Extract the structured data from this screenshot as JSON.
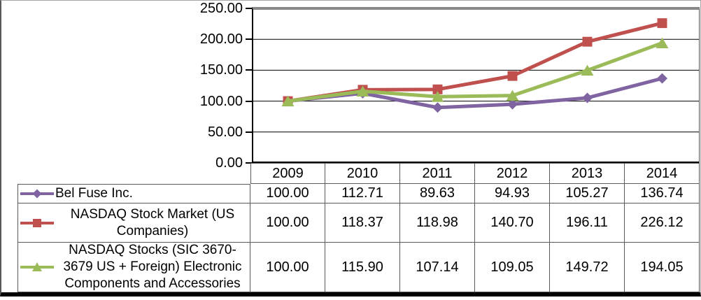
{
  "chart_data": {
    "type": "line",
    "title": "",
    "categories": [
      "2009",
      "2010",
      "2011",
      "2012",
      "2013",
      "2014"
    ],
    "series": [
      {
        "name": "Bel Fuse Inc.",
        "name_lines": [
          "Bel Fuse Inc."
        ],
        "color": "#8064A2",
        "marker": "diamond",
        "values": [
          100.0,
          112.71,
          89.63,
          94.93,
          105.27,
          136.74
        ],
        "values_display": [
          "100.00",
          "112.71",
          "89.63",
          "94.93",
          "105.27",
          "136.74"
        ]
      },
      {
        "name": "NASDAQ Stock Market (US Companies)",
        "name_lines": [
          "NASDAQ Stock Market (US",
          "Companies)"
        ],
        "color": "#C0504D",
        "marker": "square",
        "values": [
          100.0,
          118.37,
          118.98,
          140.7,
          196.11,
          226.12
        ],
        "values_display": [
          "100.00",
          "118.37",
          "118.98",
          "140.70",
          "196.11",
          "226.12"
        ]
      },
      {
        "name": "NASDAQ Stocks (SIC 3670-3679 US + Foreign) Electronic Components and Accessories",
        "name_lines": [
          "NASDAQ Stocks (SIC 3670-",
          "3679 US + Foreign) Electronic",
          "Components and Accessories"
        ],
        "color": "#9BBB59",
        "marker": "triangle",
        "values": [
          100.0,
          115.9,
          107.14,
          109.05,
          149.72,
          194.05
        ],
        "values_display": [
          "100.00",
          "115.90",
          "107.14",
          "109.05",
          "149.72",
          "194.05"
        ]
      }
    ],
    "ylim": [
      0,
      250
    ],
    "y_ticks": [
      250,
      200,
      150,
      100,
      50,
      0
    ],
    "y_tick_labels": [
      "250.00",
      "200.00",
      "150.00",
      "100.00",
      "50.00",
      "0.00"
    ],
    "grid": true,
    "legend_position": "table-left-column",
    "xlabel": "",
    "ylabel": ""
  },
  "colors": {
    "series_bel_fuse": "#8064A2",
    "series_nasdaq_market": "#C0504D",
    "series_nasdaq_sic": "#9BBB59",
    "gridline": "#000000",
    "plot_top_border": "#898989",
    "table_border": "#595959",
    "outer_border": "#000000"
  }
}
